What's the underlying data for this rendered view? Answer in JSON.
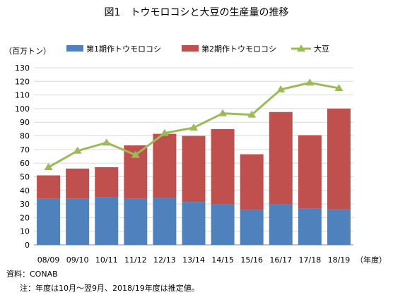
{
  "chart_data": {
    "type": "bar",
    "title": "図1　トウモロコシと大豆の生産量の推移",
    "unit_label": "（百万トン）",
    "x_axis_suffix": "（年度）",
    "categories": [
      "08/09",
      "09/10",
      "10/11",
      "11/12",
      "12/13",
      "13/14",
      "14/15",
      "15/16",
      "16/17",
      "17/18",
      "18/19"
    ],
    "ylim": [
      0,
      130
    ],
    "y_ticks": [
      0,
      10,
      20,
      30,
      40,
      50,
      60,
      70,
      80,
      90,
      100,
      110,
      120,
      130
    ],
    "grid": true,
    "legend_position": "top",
    "stacked": true,
    "series": [
      {
        "name": "第1期作トウモロコシ",
        "type": "bar",
        "color": "#4f81bd",
        "values": [
          34,
          34,
          35,
          34,
          34.5,
          31.5,
          30,
          25.5,
          30,
          26.5,
          26
        ]
      },
      {
        "name": "第2期作トウモロコシ",
        "type": "bar",
        "color": "#c0504d",
        "values": [
          17,
          22,
          22,
          39,
          47,
          48.5,
          55,
          41,
          67.5,
          54,
          74
        ]
      },
      {
        "name": "大豆",
        "type": "line",
        "color": "#9bbb59",
        "values": [
          57,
          69,
          75,
          66,
          82,
          86,
          96.5,
          95.5,
          114,
          119,
          115
        ]
      }
    ]
  },
  "footer": {
    "source": "資料：CONAB",
    "note": "注：年度は10月～翌9月、2018/19年度は推定値。"
  }
}
